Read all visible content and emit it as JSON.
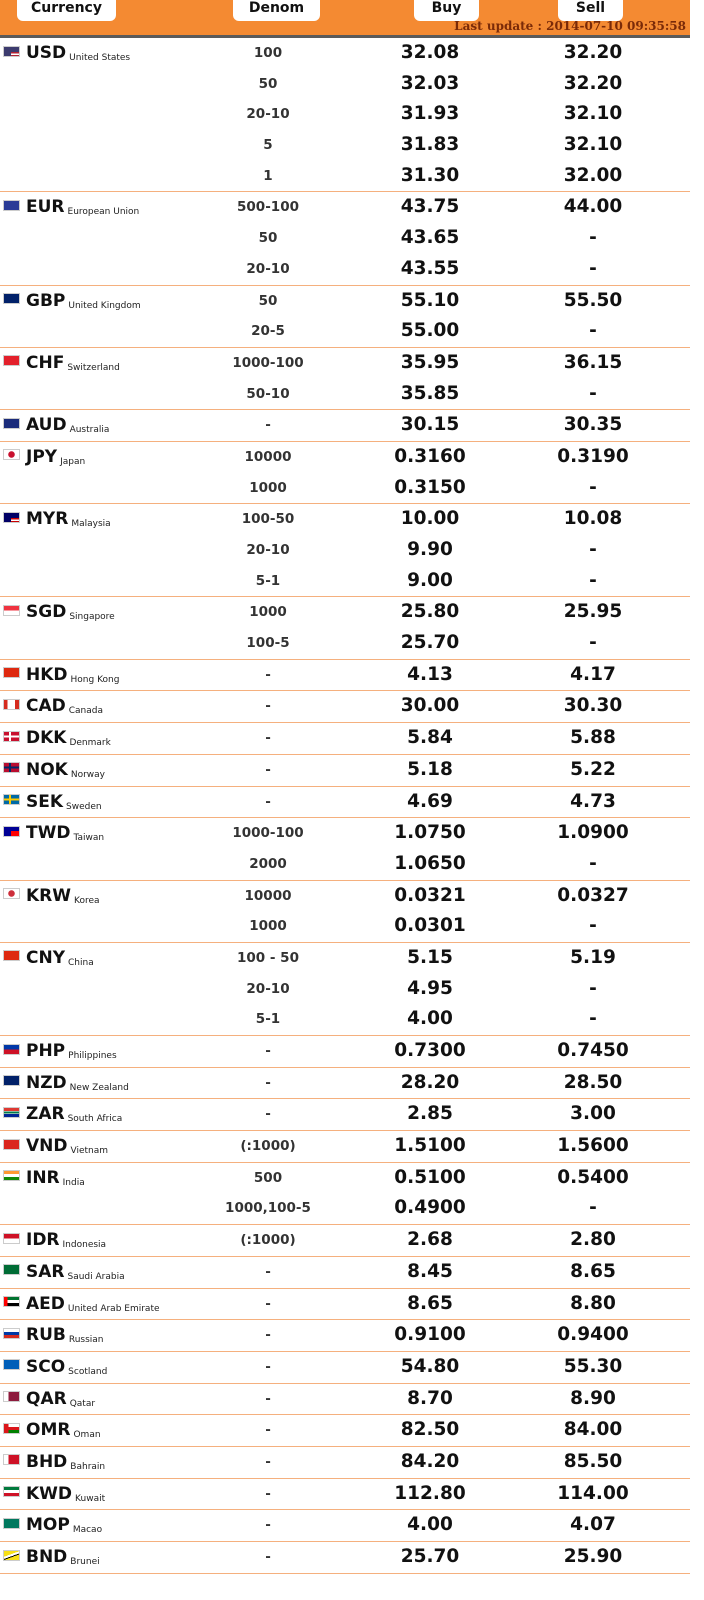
{
  "header": {
    "currency_label": "Currency",
    "denom_label": "Denom",
    "buy_label": "Buy",
    "sell_label": "Sell",
    "last_update": "Last update : 2014-07-10 09:35:58"
  },
  "colors": {
    "header_bg": "#f48a32",
    "row_divider": "#f5b07e",
    "last_update_text": "#7a2a08"
  },
  "currencies": [
    {
      "code": "USD",
      "country": "United States",
      "flag": "us-flag-icon",
      "rows": [
        {
          "denom": "100",
          "buy": "32.08",
          "sell": "32.20"
        },
        {
          "denom": "50",
          "buy": "32.03",
          "sell": "32.20"
        },
        {
          "denom": "20-10",
          "buy": "31.93",
          "sell": "32.10"
        },
        {
          "denom": "5",
          "buy": "31.83",
          "sell": "32.10"
        },
        {
          "denom": "1",
          "buy": "31.30",
          "sell": "32.00"
        }
      ]
    },
    {
      "code": "EUR",
      "country": "European Union",
      "flag": "eu-flag-icon",
      "rows": [
        {
          "denom": "500-100",
          "buy": "43.75",
          "sell": "44.00"
        },
        {
          "denom": "50",
          "buy": "43.65",
          "sell": "-"
        },
        {
          "denom": "20-10",
          "buy": "43.55",
          "sell": "-"
        }
      ]
    },
    {
      "code": "GBP",
      "country": "United Kingdom",
      "flag": "gb-flag-icon",
      "rows": [
        {
          "denom": "50",
          "buy": "55.10",
          "sell": "55.50"
        },
        {
          "denom": "20-5",
          "buy": "55.00",
          "sell": "-"
        }
      ]
    },
    {
      "code": "CHF",
      "country": "Switzerland",
      "flag": "ch-flag-icon",
      "rows": [
        {
          "denom": "1000-100",
          "buy": "35.95",
          "sell": "36.15"
        },
        {
          "denom": "50-10",
          "buy": "35.85",
          "sell": "-"
        }
      ]
    },
    {
      "code": "AUD",
      "country": "Australia",
      "flag": "au-flag-icon",
      "rows": [
        {
          "denom": "-",
          "buy": "30.15",
          "sell": "30.35"
        }
      ]
    },
    {
      "code": "JPY",
      "country": "Japan",
      "flag": "jp-flag-icon",
      "rows": [
        {
          "denom": "10000",
          "buy": "0.3160",
          "sell": "0.3190"
        },
        {
          "denom": "1000",
          "buy": "0.3150",
          "sell": "-"
        }
      ]
    },
    {
      "code": "MYR",
      "country": "Malaysia",
      "flag": "my-flag-icon",
      "rows": [
        {
          "denom": "100-50",
          "buy": "10.00",
          "sell": "10.08"
        },
        {
          "denom": "20-10",
          "buy": "9.90",
          "sell": "-"
        },
        {
          "denom": "5-1",
          "buy": "9.00",
          "sell": "-"
        }
      ]
    },
    {
      "code": "SGD",
      "country": "Singapore",
      "flag": "sg-flag-icon",
      "rows": [
        {
          "denom": "1000",
          "buy": "25.80",
          "sell": "25.95"
        },
        {
          "denom": "100-5",
          "buy": "25.70",
          "sell": "-"
        }
      ]
    },
    {
      "code": "HKD",
      "country": "Hong Kong",
      "flag": "hk-flag-icon",
      "rows": [
        {
          "denom": "-",
          "buy": "4.13",
          "sell": "4.17"
        }
      ]
    },
    {
      "code": "CAD",
      "country": "Canada",
      "flag": "ca-flag-icon",
      "rows": [
        {
          "denom": "-",
          "buy": "30.00",
          "sell": "30.30"
        }
      ]
    },
    {
      "code": "DKK",
      "country": "Denmark",
      "flag": "dk-flag-icon",
      "rows": [
        {
          "denom": "-",
          "buy": "5.84",
          "sell": "5.88"
        }
      ]
    },
    {
      "code": "NOK",
      "country": "Norway",
      "flag": "no-flag-icon",
      "rows": [
        {
          "denom": "-",
          "buy": "5.18",
          "sell": "5.22"
        }
      ]
    },
    {
      "code": "SEK",
      "country": "Sweden",
      "flag": "se-flag-icon",
      "rows": [
        {
          "denom": "-",
          "buy": "4.69",
          "sell": "4.73"
        }
      ]
    },
    {
      "code": "TWD",
      "country": "Taiwan",
      "flag": "tw-flag-icon",
      "rows": [
        {
          "denom": "1000-100",
          "buy": "1.0750",
          "sell": "1.0900"
        },
        {
          "denom": "2000",
          "buy": "1.0650",
          "sell": "-"
        }
      ]
    },
    {
      "code": "KRW",
      "country": "Korea",
      "flag": "kr-flag-icon",
      "rows": [
        {
          "denom": "10000",
          "buy": "0.0321",
          "sell": "0.0327"
        },
        {
          "denom": "1000",
          "buy": "0.0301",
          "sell": "-"
        }
      ]
    },
    {
      "code": "CNY",
      "country": "China",
      "flag": "cn-flag-icon",
      "rows": [
        {
          "denom": "100 - 50",
          "buy": "5.15",
          "sell": "5.19"
        },
        {
          "denom": "20-10",
          "buy": "4.95",
          "sell": "-"
        },
        {
          "denom": "5-1",
          "buy": "4.00",
          "sell": "-"
        }
      ]
    },
    {
      "code": "PHP",
      "country": "Philippines",
      "flag": "ph-flag-icon",
      "rows": [
        {
          "denom": "-",
          "buy": "0.7300",
          "sell": "0.7450"
        }
      ]
    },
    {
      "code": "NZD",
      "country": "New Zealand",
      "flag": "nz-flag-icon",
      "rows": [
        {
          "denom": "-",
          "buy": "28.20",
          "sell": "28.50"
        }
      ]
    },
    {
      "code": "ZAR",
      "country": "South Africa",
      "flag": "za-flag-icon",
      "rows": [
        {
          "denom": "-",
          "buy": "2.85",
          "sell": "3.00"
        }
      ]
    },
    {
      "code": "VND",
      "country": "Vietnam",
      "flag": "vn-flag-icon",
      "rows": [
        {
          "denom": "(:1000)",
          "buy": "1.5100",
          "sell": "1.5600"
        }
      ]
    },
    {
      "code": "INR",
      "country": "India",
      "flag": "in-flag-icon",
      "rows": [
        {
          "denom": "500",
          "buy": "0.5100",
          "sell": "0.5400"
        },
        {
          "denom": "1000,100-5",
          "buy": "0.4900",
          "sell": "-"
        }
      ]
    },
    {
      "code": "IDR",
      "country": "Indonesia",
      "flag": "id-flag-icon",
      "rows": [
        {
          "denom": "(:1000)",
          "buy": "2.68",
          "sell": "2.80"
        }
      ]
    },
    {
      "code": "SAR",
      "country": "Saudi Arabia",
      "flag": "sa-flag-icon",
      "rows": [
        {
          "denom": "-",
          "buy": "8.45",
          "sell": "8.65"
        }
      ]
    },
    {
      "code": "AED",
      "country": "United Arab Emirate",
      "flag": "ae-flag-icon",
      "rows": [
        {
          "denom": "-",
          "buy": "8.65",
          "sell": "8.80"
        }
      ]
    },
    {
      "code": "RUB",
      "country": "Russian",
      "flag": "ru-flag-icon",
      "rows": [
        {
          "denom": "-",
          "buy": "0.9100",
          "sell": "0.9400"
        }
      ]
    },
    {
      "code": "SCO",
      "country": "Scotland",
      "flag": "sco-flag-icon",
      "rows": [
        {
          "denom": "-",
          "buy": "54.80",
          "sell": "55.30"
        }
      ]
    },
    {
      "code": "QAR",
      "country": "Qatar",
      "flag": "qa-flag-icon",
      "rows": [
        {
          "denom": "-",
          "buy": "8.70",
          "sell": "8.90"
        }
      ]
    },
    {
      "code": "OMR",
      "country": "Oman",
      "flag": "om-flag-icon",
      "rows": [
        {
          "denom": "-",
          "buy": "82.50",
          "sell": "84.00"
        }
      ]
    },
    {
      "code": "BHD",
      "country": "Bahrain",
      "flag": "bh-flag-icon",
      "rows": [
        {
          "denom": "-",
          "buy": "84.20",
          "sell": "85.50"
        }
      ]
    },
    {
      "code": "KWD",
      "country": "Kuwait",
      "flag": "kw-flag-icon",
      "rows": [
        {
          "denom": "-",
          "buy": "112.80",
          "sell": "114.00"
        }
      ]
    },
    {
      "code": "MOP",
      "country": "Macao",
      "flag": "mo-flag-icon",
      "rows": [
        {
          "denom": "-",
          "buy": "4.00",
          "sell": "4.07"
        }
      ]
    },
    {
      "code": "BND",
      "country": "Brunei",
      "flag": "bn-flag-icon",
      "rows": [
        {
          "denom": "-",
          "buy": "25.70",
          "sell": "25.90"
        }
      ]
    }
  ]
}
